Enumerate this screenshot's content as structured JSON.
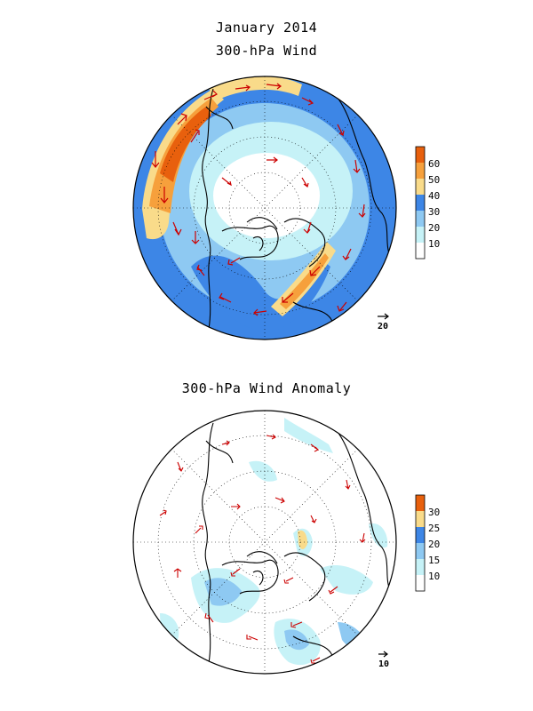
{
  "title_month": "January 2014",
  "panels": [
    {
      "title": "300-hPa Wind",
      "colorbar": {
        "labels": [
          "10",
          "20",
          "30",
          "40",
          "50",
          "60"
        ],
        "colors": [
          "#ffffff",
          "#c6f2f7",
          "#8ec9f2",
          "#3d86e6",
          "#f9db8a",
          "#f6a03c",
          "#e8600d"
        ]
      },
      "reference_vector": "20"
    },
    {
      "title": "300-hPa Wind Anomaly",
      "colorbar": {
        "labels": [
          "10",
          "15",
          "20",
          "25",
          "30"
        ],
        "colors": [
          "#ffffff",
          "#c6f2f7",
          "#8ec9f2",
          "#3d86e6",
          "#f9db8a",
          "#e8600d"
        ]
      },
      "reference_vector": "10"
    }
  ],
  "colors": {
    "vector": "#cc0000",
    "coast": "#000000",
    "grid": "#000000"
  }
}
